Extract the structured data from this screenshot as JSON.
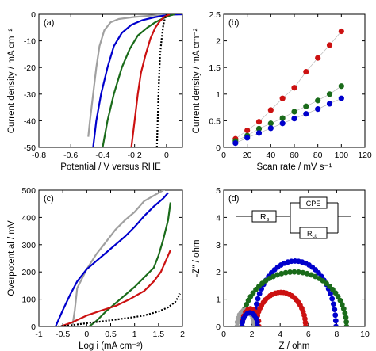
{
  "colors": {
    "gray": "#a0a0a0",
    "blue": "#0000cc",
    "green": "#1a6b1a",
    "red": "#cc1111",
    "black": "#000000"
  },
  "chart_data": [
    {
      "panel": "(a)",
      "type": "line",
      "title": "",
      "xlabel": "Potential / V versus RHE",
      "ylabel": "Current density / mA cm⁻²",
      "xlim": [
        -0.8,
        0.1
      ],
      "ylim": [
        -50,
        0
      ],
      "xticks": [
        -0.8,
        -0.6,
        -0.4,
        -0.2,
        0.0
      ],
      "xtick_labels": [
        "-0.8",
        "-0.6",
        "-0.4",
        "-0.2",
        "0"
      ],
      "yticks": [
        -50,
        -40,
        -30,
        -20,
        -10,
        0
      ],
      "ytick_labels": [
        "-50",
        "-40",
        "-30",
        "-20",
        "-10",
        "0"
      ],
      "series": [
        {
          "color": "gray",
          "dash": false,
          "points": [
            [
              -0.49,
              -46
            ],
            [
              -0.48,
              -40
            ],
            [
              -0.46,
              -30
            ],
            [
              -0.44,
              -20
            ],
            [
              -0.42,
              -12
            ],
            [
              -0.39,
              -6
            ],
            [
              -0.35,
              -3
            ],
            [
              -0.3,
              -1.8
            ],
            [
              -0.2,
              -1
            ],
            [
              -0.1,
              -0.5
            ],
            [
              0.0,
              -0.1
            ],
            [
              0.1,
              0
            ]
          ]
        },
        {
          "color": "blue",
          "dash": false,
          "points": [
            [
              -0.46,
              -50
            ],
            [
              -0.44,
              -40
            ],
            [
              -0.41,
              -30
            ],
            [
              -0.37,
              -20
            ],
            [
              -0.33,
              -12
            ],
            [
              -0.28,
              -7
            ],
            [
              -0.22,
              -4
            ],
            [
              -0.15,
              -2.2
            ],
            [
              -0.08,
              -1.2
            ],
            [
              -0.02,
              -0.5
            ],
            [
              0.05,
              -0.1
            ],
            [
              0.1,
              0
            ]
          ]
        },
        {
          "color": "green",
          "dash": false,
          "points": [
            [
              -0.4,
              -50
            ],
            [
              -0.37,
              -40
            ],
            [
              -0.33,
              -30
            ],
            [
              -0.28,
              -20
            ],
            [
              -0.23,
              -13
            ],
            [
              -0.18,
              -8
            ],
            [
              -0.12,
              -5
            ],
            [
              -0.07,
              -3
            ],
            [
              -0.02,
              -1.5
            ],
            [
              0.02,
              -0.5
            ],
            [
              0.05,
              0
            ]
          ]
        },
        {
          "color": "red",
          "dash": false,
          "points": [
            [
              -0.22,
              -50
            ],
            [
              -0.2,
              -40
            ],
            [
              -0.18,
              -30
            ],
            [
              -0.16,
              -22
            ],
            [
              -0.13,
              -15
            ],
            [
              -0.1,
              -9
            ],
            [
              -0.07,
              -5
            ],
            [
              -0.04,
              -2.5
            ],
            [
              -0.01,
              -0.8
            ],
            [
              0.02,
              0
            ]
          ]
        },
        {
          "color": "black",
          "dash": true,
          "points": [
            [
              -0.06,
              -50
            ],
            [
              -0.055,
              -40
            ],
            [
              -0.05,
              -30
            ],
            [
              -0.045,
              -22
            ],
            [
              -0.04,
              -15
            ],
            [
              -0.03,
              -9
            ],
            [
              -0.02,
              -4
            ],
            [
              -0.01,
              -1.5
            ],
            [
              0.0,
              0
            ]
          ]
        }
      ]
    },
    {
      "panel": "(b)",
      "type": "scatter",
      "title": "",
      "xlabel": "Scan rate / mV s⁻¹",
      "ylabel": "Current density / mA cm⁻²",
      "xlim": [
        0,
        120
      ],
      "ylim": [
        0,
        2.5
      ],
      "xticks": [
        0,
        20,
        40,
        60,
        80,
        100,
        120
      ],
      "xtick_labels": [
        "0",
        "20",
        "40",
        "60",
        "80",
        "100",
        "120"
      ],
      "yticks": [
        0,
        0.5,
        1.0,
        1.5,
        2.0,
        2.5
      ],
      "ytick_labels": [
        "0",
        "0.5",
        "1",
        "1.5",
        "2",
        "2.5"
      ],
      "x": [
        10,
        20,
        30,
        40,
        50,
        60,
        70,
        80,
        90,
        100
      ],
      "series": [
        {
          "color": "red",
          "values": [
            0.16,
            0.32,
            0.48,
            0.7,
            0.92,
            1.12,
            1.42,
            1.68,
            1.92,
            2.18
          ]
        },
        {
          "color": "green",
          "values": [
            0.12,
            0.22,
            0.35,
            0.45,
            0.55,
            0.67,
            0.77,
            0.88,
            1.0,
            1.15
          ]
        },
        {
          "color": "blue",
          "values": [
            0.08,
            0.18,
            0.27,
            0.36,
            0.45,
            0.54,
            0.63,
            0.72,
            0.82,
            0.92
          ]
        }
      ]
    },
    {
      "panel": "(c)",
      "type": "line",
      "title": "",
      "xlabel": "Log i (mA cm⁻²)",
      "ylabel": "Overpotential / mV",
      "xlim": [
        -1,
        2
      ],
      "ylim": [
        0,
        500
      ],
      "xticks": [
        -1,
        -0.5,
        0,
        0.5,
        1,
        1.5,
        2
      ],
      "xtick_labels": [
        "-1",
        "-0.5",
        "0",
        "0.5",
        "1",
        "1.5",
        "2"
      ],
      "yticks": [
        0,
        100,
        200,
        300,
        400,
        500
      ],
      "ytick_labels": [
        "0",
        "100",
        "200",
        "300",
        "400",
        "500"
      ],
      "series": [
        {
          "color": "gray",
          "dash": false,
          "points": [
            [
              -0.3,
              0
            ],
            [
              -0.25,
              60
            ],
            [
              -0.2,
              140
            ],
            [
              -0.1,
              175
            ],
            [
              0.0,
              210
            ],
            [
              0.2,
              265
            ],
            [
              0.4,
              310
            ],
            [
              0.6,
              355
            ],
            [
              0.8,
              390
            ],
            [
              1.0,
              420
            ],
            [
              1.2,
              460
            ],
            [
              1.4,
              480
            ],
            [
              1.6,
              500
            ],
            [
              1.7,
              510
            ]
          ]
        },
        {
          "color": "blue",
          "dash": false,
          "points": [
            [
              -0.65,
              0
            ],
            [
              -0.5,
              60
            ],
            [
              -0.35,
              115
            ],
            [
              -0.2,
              165
            ],
            [
              0.0,
              210
            ],
            [
              0.2,
              240
            ],
            [
              0.4,
              270
            ],
            [
              0.6,
              300
            ],
            [
              0.8,
              330
            ],
            [
              1.0,
              365
            ],
            [
              1.2,
              405
            ],
            [
              1.4,
              440
            ],
            [
              1.6,
              470
            ],
            [
              1.7,
              490
            ]
          ]
        },
        {
          "color": "green",
          "dash": false,
          "points": [
            [
              0.05,
              0
            ],
            [
              0.2,
              20
            ],
            [
              0.4,
              55
            ],
            [
              0.6,
              85
            ],
            [
              0.8,
              115
            ],
            [
              1.0,
              145
            ],
            [
              1.2,
              180
            ],
            [
              1.4,
              215
            ],
            [
              1.5,
              260
            ],
            [
              1.6,
              320
            ],
            [
              1.7,
              390
            ],
            [
              1.75,
              455
            ]
          ]
        },
        {
          "color": "red",
          "dash": false,
          "points": [
            [
              -0.55,
              0
            ],
            [
              -0.3,
              15
            ],
            [
              0.0,
              40
            ],
            [
              0.3,
              58
            ],
            [
              0.6,
              75
            ],
            [
              0.9,
              100
            ],
            [
              1.2,
              130
            ],
            [
              1.4,
              165
            ],
            [
              1.55,
              200
            ],
            [
              1.65,
              240
            ],
            [
              1.75,
              280
            ]
          ]
        },
        {
          "color": "black",
          "dash": true,
          "points": [
            [
              -0.6,
              0
            ],
            [
              -0.3,
              5
            ],
            [
              0.0,
              12
            ],
            [
              0.3,
              18
            ],
            [
              0.6,
              25
            ],
            [
              0.9,
              32
            ],
            [
              1.2,
              40
            ],
            [
              1.5,
              55
            ],
            [
              1.7,
              70
            ],
            [
              1.85,
              90
            ],
            [
              1.95,
              120
            ]
          ]
        }
      ]
    },
    {
      "panel": "(d)",
      "type": "scatter",
      "title": "",
      "xlabel": "Z / ohm",
      "ylabel": "-Z″ / ohm",
      "xlim": [
        0,
        10
      ],
      "ylim": [
        0,
        5
      ],
      "xticks": [
        0,
        2,
        4,
        6,
        8,
        10
      ],
      "xtick_labels": [
        "0",
        "2",
        "4",
        "6",
        "8",
        "10"
      ],
      "yticks": [
        0,
        1,
        2,
        3,
        4,
        5
      ],
      "ytick_labels": [
        "0",
        "1",
        "2",
        "3",
        "4",
        "5"
      ],
      "series": [
        {
          "color": "blue",
          "center": 5.05,
          "radius": 2.9,
          "peak": 2.4,
          "n": 36
        },
        {
          "color": "green",
          "center": 5.0,
          "radius": 3.7,
          "peak": 2.0,
          "n": 38
        },
        {
          "color": "red",
          "center": 4.05,
          "radius": 1.75,
          "peak": 1.25,
          "n": 28
        },
        {
          "color": "gray",
          "center": 1.55,
          "radius": 0.6,
          "peak": 0.6,
          "n": 12
        },
        {
          "color": "red",
          "center": 1.9,
          "radius": 0.6,
          "peak": 0.65,
          "n": 10
        },
        {
          "color": "blue",
          "center": 1.85,
          "radius": 0.55,
          "peak": 0.5,
          "n": 10
        }
      ],
      "inset_circuit": {
        "rs": "R",
        "rs_sub": "s",
        "cpe": "CPE",
        "rct": "R",
        "rct_sub": "ct"
      }
    }
  ]
}
